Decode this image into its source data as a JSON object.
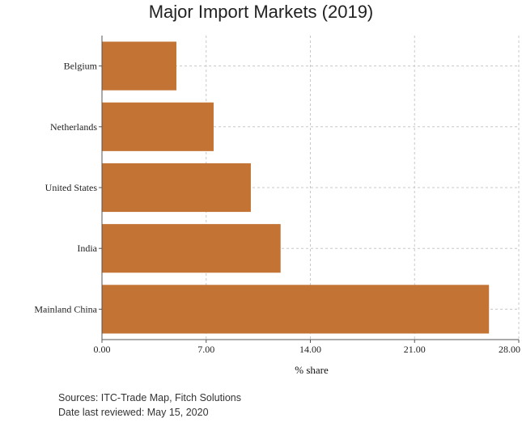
{
  "chart_data": {
    "type": "bar",
    "orientation": "horizontal",
    "title": "Major Import Markets (2019)",
    "xlabel": "% share",
    "ylabel": "",
    "categories": [
      "Belgium",
      "Netherlands",
      "United States",
      "India",
      "Mainland China"
    ],
    "values": [
      5.0,
      7.5,
      10.0,
      12.0,
      26.0
    ],
    "xlim": [
      0,
      28
    ],
    "xticks": [
      0,
      7,
      14,
      21,
      28
    ],
    "xtick_labels": [
      "0.00",
      "7.00",
      "14.00",
      "21.00",
      "28.00"
    ],
    "grid": true,
    "bar_color": "#c37334"
  },
  "footer": {
    "source": "Sources: ITC-Trade Map, Fitch Solutions",
    "reviewed": "Date last reviewed: May 15, 2020"
  }
}
